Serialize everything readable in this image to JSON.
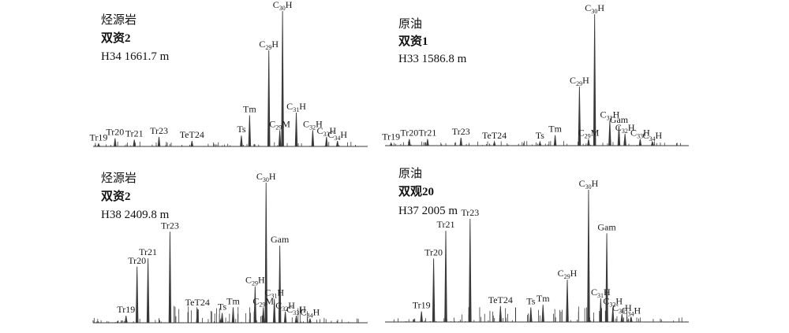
{
  "chart_data": [
    {
      "type": "line",
      "header": [
        "烃源岩",
        "双资2",
        "H34 1661.7 m"
      ],
      "peaks": [
        {
          "name": "Tr19",
          "label": [
            "Tr",
            "19",
            ""
          ],
          "rt": 0.02,
          "h": 0.02
        },
        {
          "name": "Tr20",
          "label": [
            "Tr",
            "20",
            ""
          ],
          "rt": 0.08,
          "h": 0.06
        },
        {
          "name": "Tr21",
          "label": [
            "Tr",
            "21",
            ""
          ],
          "rt": 0.15,
          "h": 0.05
        },
        {
          "name": "Tr23",
          "label": [
            "Tr",
            "23",
            ""
          ],
          "rt": 0.24,
          "h": 0.07
        },
        {
          "name": "TeT24",
          "label": [
            "TeT",
            "24",
            ""
          ],
          "rt": 0.36,
          "h": 0.04
        },
        {
          "name": "Ts",
          "label": [
            "Ts",
            "",
            ""
          ],
          "rt": 0.54,
          "h": 0.08
        },
        {
          "name": "Tm",
          "label": [
            "Tm",
            "",
            ""
          ],
          "rt": 0.57,
          "h": 0.23
        },
        {
          "name": "C29H",
          "label": [
            "C",
            "29",
            "H"
          ],
          "rt": 0.64,
          "h": 0.71
        },
        {
          "name": "C29M",
          "label": [
            "C",
            "29",
            "M"
          ],
          "rt": 0.68,
          "h": 0.12
        },
        {
          "name": "C30H",
          "label": [
            "C",
            "30",
            "H"
          ],
          "rt": 0.69,
          "h": 1.0
        },
        {
          "name": "C31H",
          "label": [
            "C",
            "31",
            "H"
          ],
          "rt": 0.74,
          "h": 0.25
        },
        {
          "name": "C32H",
          "label": [
            "C",
            "32",
            "H"
          ],
          "rt": 0.8,
          "h": 0.12
        },
        {
          "name": "C33H",
          "label": [
            "C",
            "33",
            "H"
          ],
          "rt": 0.85,
          "h": 0.07
        },
        {
          "name": "C34H",
          "label": [
            "C",
            "34",
            "H"
          ],
          "rt": 0.89,
          "h": 0.04
        }
      ]
    },
    {
      "type": "line",
      "header": [
        "原油",
        "双资1",
        "H33 1586.8 m"
      ],
      "peaks": [
        {
          "name": "Tr19",
          "label": [
            "Tr",
            "19",
            ""
          ],
          "rt": 0.02,
          "h": 0.02
        },
        {
          "name": "Tr20",
          "label": [
            "Tr",
            "20",
            ""
          ],
          "rt": 0.08,
          "h": 0.05
        },
        {
          "name": "Tr21",
          "label": [
            "Tr",
            "21",
            ""
          ],
          "rt": 0.14,
          "h": 0.05
        },
        {
          "name": "Tr23",
          "label": [
            "Tr",
            "23",
            ""
          ],
          "rt": 0.25,
          "h": 0.06
        },
        {
          "name": "TeT24",
          "label": [
            "TeT",
            "24",
            ""
          ],
          "rt": 0.36,
          "h": 0.03
        },
        {
          "name": "Ts",
          "label": [
            "Ts",
            "",
            ""
          ],
          "rt": 0.51,
          "h": 0.03
        },
        {
          "name": "Tm",
          "label": [
            "Tm",
            "",
            ""
          ],
          "rt": 0.56,
          "h": 0.08
        },
        {
          "name": "C29H",
          "label": [
            "C",
            "29",
            "H"
          ],
          "rt": 0.64,
          "h": 0.45
        },
        {
          "name": "C29M",
          "label": [
            "C",
            "29",
            "M"
          ],
          "rt": 0.67,
          "h": 0.05
        },
        {
          "name": "C30H",
          "label": [
            "C",
            "30",
            "H"
          ],
          "rt": 0.69,
          "h": 1.0
        },
        {
          "name": "C31H",
          "label": [
            "C",
            "31",
            "H"
          ],
          "rt": 0.74,
          "h": 0.19
        },
        {
          "name": "Gam",
          "label": [
            "Gam",
            "",
            ""
          ],
          "rt": 0.77,
          "h": 0.15
        },
        {
          "name": "C32H",
          "label": [
            "C",
            "32",
            "H"
          ],
          "rt": 0.79,
          "h": 0.09
        },
        {
          "name": "C33H",
          "label": [
            "C",
            "33",
            "H"
          ],
          "rt": 0.84,
          "h": 0.05
        },
        {
          "name": "C34H",
          "label": [
            "C",
            "34",
            "H"
          ],
          "rt": 0.88,
          "h": 0.03
        }
      ]
    },
    {
      "type": "line",
      "header": [
        "烃源岩",
        "双资2",
        "H38 2409.8 m"
      ],
      "peaks": [
        {
          "name": "Tr19",
          "label": [
            "Tr",
            "19",
            ""
          ],
          "rt": 0.12,
          "h": 0.05
        },
        {
          "name": "Tr20",
          "label": [
            "Tr",
            "20",
            ""
          ],
          "rt": 0.16,
          "h": 0.4
        },
        {
          "name": "Tr21",
          "label": [
            "Tr",
            "21",
            ""
          ],
          "rt": 0.2,
          "h": 0.46
        },
        {
          "name": "Tr23",
          "label": [
            "Tr",
            "23",
            ""
          ],
          "rt": 0.28,
          "h": 0.65
        },
        {
          "name": "TeT24",
          "label": [
            "TeT",
            "24",
            ""
          ],
          "rt": 0.38,
          "h": 0.1
        },
        {
          "name": "Ts",
          "label": [
            "Ts",
            "",
            ""
          ],
          "rt": 0.47,
          "h": 0.07
        },
        {
          "name": "Tm",
          "label": [
            "Tm",
            "",
            ""
          ],
          "rt": 0.51,
          "h": 0.11
        },
        {
          "name": "C29H",
          "label": [
            "C",
            "29",
            "H"
          ],
          "rt": 0.59,
          "h": 0.26
        },
        {
          "name": "C29M",
          "label": [
            "C",
            "29",
            "M"
          ],
          "rt": 0.62,
          "h": 0.11
        },
        {
          "name": "C30H",
          "label": [
            "C",
            "30",
            "H"
          ],
          "rt": 0.63,
          "h": 1.0
        },
        {
          "name": "C31H",
          "label": [
            "C",
            "31",
            "H"
          ],
          "rt": 0.66,
          "h": 0.17
        },
        {
          "name": "Gam",
          "label": [
            "Gam",
            "",
            ""
          ],
          "rt": 0.68,
          "h": 0.55
        },
        {
          "name": "C32H",
          "label": [
            "C",
            "32",
            "H"
          ],
          "rt": 0.7,
          "h": 0.08
        },
        {
          "name": "C33H",
          "label": [
            "C",
            "33",
            "H"
          ],
          "rt": 0.74,
          "h": 0.05
        },
        {
          "name": "C34H",
          "label": [
            "C",
            "34",
            "H"
          ],
          "rt": 0.79,
          "h": 0.03
        }
      ]
    },
    {
      "type": "line",
      "header": [
        "原油",
        "双观20",
        "H37 2005 m"
      ],
      "peaks": [
        {
          "name": "Tr19",
          "label": [
            "Tr",
            "19",
            ""
          ],
          "rt": 0.12,
          "h": 0.08
        },
        {
          "name": "Tr20",
          "label": [
            "Tr",
            "20",
            ""
          ],
          "rt": 0.16,
          "h": 0.48
        },
        {
          "name": "Tr21",
          "label": [
            "Tr",
            "21",
            ""
          ],
          "rt": 0.2,
          "h": 0.69
        },
        {
          "name": "Tr23",
          "label": [
            "Tr",
            "23",
            ""
          ],
          "rt": 0.28,
          "h": 0.78
        },
        {
          "name": "TeT24",
          "label": [
            "TeT",
            "24",
            ""
          ],
          "rt": 0.38,
          "h": 0.12
        },
        {
          "name": "Ts",
          "label": [
            "Ts",
            "",
            ""
          ],
          "rt": 0.48,
          "h": 0.11
        },
        {
          "name": "Tm",
          "label": [
            "Tm",
            "",
            ""
          ],
          "rt": 0.52,
          "h": 0.13
        },
        {
          "name": "C29H",
          "label": [
            "C",
            "29",
            "H"
          ],
          "rt": 0.6,
          "h": 0.32
        },
        {
          "name": "C30H",
          "label": [
            "C",
            "30",
            "H"
          ],
          "rt": 0.67,
          "h": 1.0
        },
        {
          "name": "C31H",
          "label": [
            "C",
            "31",
            "H"
          ],
          "rt": 0.71,
          "h": 0.18
        },
        {
          "name": "Gam",
          "label": [
            "Gam",
            "",
            ""
          ],
          "rt": 0.73,
          "h": 0.67
        },
        {
          "name": "C32H",
          "label": [
            "C",
            "32",
            "H"
          ],
          "rt": 0.75,
          "h": 0.11
        },
        {
          "name": "C33H",
          "label": [
            "C",
            "33",
            "H"
          ],
          "rt": 0.78,
          "h": 0.06
        },
        {
          "name": "C34H",
          "label": [
            "C",
            "34",
            "H"
          ],
          "rt": 0.81,
          "h": 0.04
        }
      ]
    }
  ],
  "colors": {
    "trace": "#3a3a3a",
    "label": "#1a1a1a"
  }
}
